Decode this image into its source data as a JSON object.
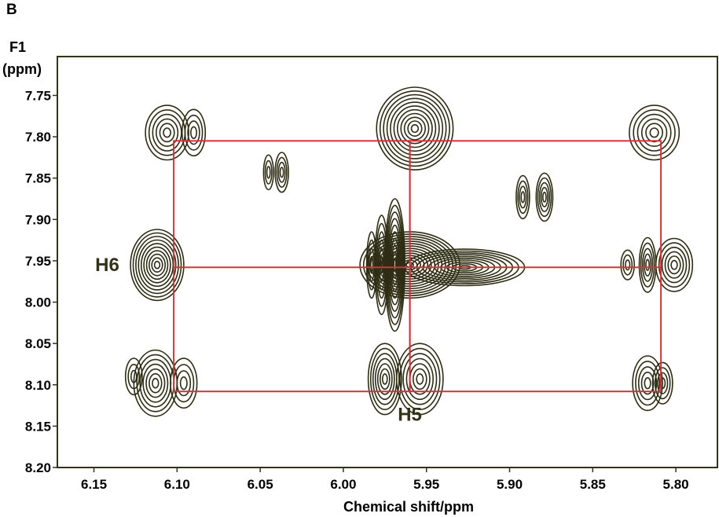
{
  "panel_label": "B",
  "colors": {
    "contour": "#2e2d14",
    "frame": "#33331a",
    "box": "#d0343c",
    "label": "#33331a"
  },
  "chart_data": {
    "type": "2D NMR contour plot",
    "xlabel": "Chemical shift/ppm",
    "ylabel_line1": "F1",
    "ylabel_line2": "(ppm)",
    "xlim": [
      6.172,
      5.775
    ],
    "ylim": [
      7.703,
      8.2
    ],
    "x_ticks": [
      6.15,
      6.1,
      6.05,
      6.0,
      5.95,
      5.9,
      5.85,
      5.8
    ],
    "x_tick_labels": [
      "6.15",
      "6.10",
      "6.05",
      "6.00",
      "5.95",
      "5.90",
      "5.85",
      "5.80"
    ],
    "y_ticks": [
      7.75,
      7.8,
      7.85,
      7.9,
      7.95,
      8.0,
      8.05,
      8.1,
      8.15,
      8.2
    ],
    "y_tick_labels": [
      "7.75",
      "7.80",
      "7.85",
      "7.90",
      "7.95",
      "8.00",
      "8.05",
      "8.10",
      "8.15",
      "8.20"
    ],
    "annotations": [
      {
        "text": "H6",
        "x": 6.142,
        "y": 7.955
      },
      {
        "text": "H5",
        "x": 5.96,
        "y": 8.136
      }
    ],
    "boxes": [
      {
        "x0": 6.102,
        "x1": 5.96,
        "y0": 7.805,
        "y1": 8.108
      },
      {
        "x0": 5.96,
        "x1": 5.809,
        "y0": 7.805,
        "y1": 8.108
      }
    ],
    "hlines": [
      {
        "y": 7.958,
        "x0": 6.102,
        "x1": 5.809
      }
    ],
    "peaks": [
      {
        "x": 6.106,
        "y": 7.795,
        "rx": 0.013,
        "ry": 0.033,
        "rings": 6
      },
      {
        "x": 6.09,
        "y": 7.795,
        "rx": 0.007,
        "ry": 0.028,
        "rings": 4
      },
      {
        "x": 6.045,
        "y": 7.843,
        "rx": 0.003,
        "ry": 0.021,
        "rings": 3
      },
      {
        "x": 6.037,
        "y": 7.843,
        "rx": 0.004,
        "ry": 0.024,
        "rings": 4
      },
      {
        "x": 5.957,
        "y": 7.79,
        "rx": 0.023,
        "ry": 0.05,
        "rings": 11
      },
      {
        "x": 5.892,
        "y": 7.873,
        "rx": 0.004,
        "ry": 0.026,
        "rings": 4
      },
      {
        "x": 5.879,
        "y": 7.873,
        "rx": 0.005,
        "ry": 0.029,
        "rings": 5
      },
      {
        "x": 5.813,
        "y": 7.795,
        "rx": 0.015,
        "ry": 0.033,
        "rings": 6
      },
      {
        "x": 6.112,
        "y": 7.955,
        "rx": 0.016,
        "ry": 0.043,
        "rings": 10
      },
      {
        "x": 5.983,
        "y": 7.955,
        "rx": 0.003,
        "ry": 0.04,
        "rings": 4
      },
      {
        "x": 5.977,
        "y": 7.955,
        "rx": 0.004,
        "ry": 0.06,
        "rings": 6
      },
      {
        "x": 5.969,
        "y": 7.955,
        "rx": 0.006,
        "ry": 0.08,
        "rings": 10
      },
      {
        "x": 5.96,
        "y": 7.955,
        "rx": 0.03,
        "ry": 0.04,
        "rings": 14
      },
      {
        "x": 5.927,
        "y": 7.958,
        "rx": 0.036,
        "ry": 0.022,
        "rings": 10
      },
      {
        "x": 5.829,
        "y": 7.955,
        "rx": 0.004,
        "ry": 0.018,
        "rings": 3
      },
      {
        "x": 5.817,
        "y": 7.955,
        "rx": 0.005,
        "ry": 0.033,
        "rings": 5
      },
      {
        "x": 5.801,
        "y": 7.955,
        "rx": 0.011,
        "ry": 0.032,
        "rings": 6
      },
      {
        "x": 6.126,
        "y": 8.09,
        "rx": 0.005,
        "ry": 0.022,
        "rings": 3
      },
      {
        "x": 6.113,
        "y": 8.098,
        "rx": 0.013,
        "ry": 0.04,
        "rings": 7
      },
      {
        "x": 6.096,
        "y": 8.098,
        "rx": 0.008,
        "ry": 0.03,
        "rings": 4
      },
      {
        "x": 5.975,
        "y": 8.093,
        "rx": 0.01,
        "ry": 0.043,
        "rings": 7
      },
      {
        "x": 5.954,
        "y": 8.093,
        "rx": 0.014,
        "ry": 0.043,
        "rings": 7
      },
      {
        "x": 5.817,
        "y": 8.098,
        "rx": 0.009,
        "ry": 0.033,
        "rings": 5
      },
      {
        "x": 5.808,
        "y": 8.098,
        "rx": 0.006,
        "ry": 0.025,
        "rings": 4
      }
    ]
  }
}
